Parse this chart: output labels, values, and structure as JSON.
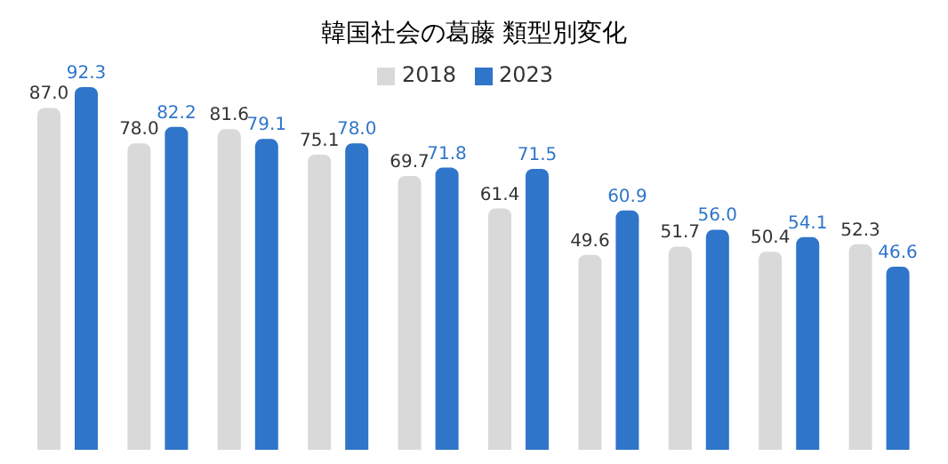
{
  "chart_data": {
    "type": "bar",
    "title": "韓国社会の葛藤 類型別変化",
    "categories": [
      null,
      null,
      null,
      null,
      null,
      null,
      null,
      null,
      null,
      null
    ],
    "series": [
      {
        "name": "2018",
        "color": "#d9d9d9",
        "values": [
          87.0,
          78.0,
          81.6,
          75.1,
          69.7,
          61.4,
          49.6,
          51.7,
          50.4,
          52.3
        ],
        "value_labels": [
          "87.0",
          "78.0",
          "81.6",
          "75.1",
          "69.7",
          "61.4",
          "49.6",
          "51.7",
          "50.4",
          "52.3"
        ]
      },
      {
        "name": "2023",
        "color": "#2f75c9",
        "values": [
          92.3,
          82.2,
          79.1,
          78.0,
          71.8,
          71.5,
          60.9,
          56.0,
          54.1,
          46.6
        ],
        "value_labels": [
          "92.3",
          "82.2",
          "79.1",
          "78.0",
          "71.8",
          "71.5",
          "60.9",
          "56.0",
          "54.1",
          "46.6"
        ]
      }
    ],
    "legend": "top",
    "grid": false
  }
}
